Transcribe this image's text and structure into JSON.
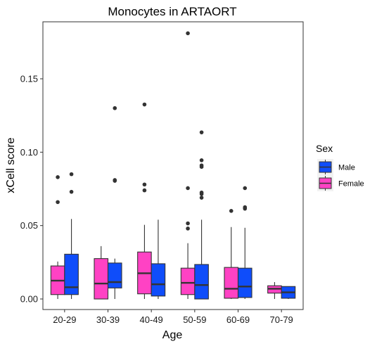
{
  "chart_data": {
    "type": "boxplot",
    "title": "Monocytes in ARTAORT",
    "xlabel": "Age",
    "ylabel": "xCell score",
    "categories": [
      "20-29",
      "30-39",
      "40-49",
      "50-59",
      "60-69",
      "70-79"
    ],
    "ylim": [
      -0.008,
      0.185
    ],
    "yticks": [
      0,
      0.05,
      0.1,
      0.15
    ],
    "ytick_labels": [
      "0.00",
      "0.05",
      "0.10",
      "0.15"
    ],
    "grid": false,
    "legend": {
      "title": "Sex",
      "position": "right",
      "entries": [
        {
          "name": "Male",
          "color": "#0f4dfa"
        },
        {
          "name": "Female",
          "color": "#ff42c4"
        }
      ]
    },
    "series": [
      {
        "name": "Female",
        "color": "#ff42c4",
        "boxes": [
          {
            "whisker_low": 0.0,
            "q1": 0.003,
            "median": 0.0125,
            "q3": 0.0225,
            "whisker_high": 0.0255,
            "outliers": [
              0.066,
              0.083
            ]
          },
          {
            "whisker_low": 0.0,
            "q1": 0.0,
            "median": 0.0105,
            "q3": 0.0275,
            "whisker_high": 0.036,
            "outliers": []
          },
          {
            "whisker_low": 0.0,
            "q1": 0.0035,
            "median": 0.0175,
            "q3": 0.032,
            "whisker_high": 0.0505,
            "outliers": [
              0.074,
              0.078,
              0.1325
            ]
          },
          {
            "whisker_low": 0.0,
            "q1": 0.003,
            "median": 0.011,
            "q3": 0.021,
            "whisker_high": 0.038,
            "outliers": [
              0.048,
              0.0515,
              0.0755,
              0.181
            ]
          },
          {
            "whisker_low": 0.0,
            "q1": 0.0005,
            "median": 0.007,
            "q3": 0.0215,
            "whisker_high": 0.049,
            "outliers": [
              0.06
            ]
          },
          {
            "whisker_low": 0.0,
            "q1": 0.004,
            "median": 0.007,
            "q3": 0.009,
            "whisker_high": 0.0115,
            "outliers": []
          }
        ]
      },
      {
        "name": "Male",
        "color": "#0f4dfa",
        "boxes": [
          {
            "whisker_low": 0.0,
            "q1": 0.003,
            "median": 0.008,
            "q3": 0.0305,
            "whisker_high": 0.0545,
            "outliers": [
              0.073,
              0.085
            ]
          },
          {
            "whisker_low": 0.0,
            "q1": 0.0075,
            "median": 0.0115,
            "q3": 0.0245,
            "whisker_high": 0.0275,
            "outliers": [
              0.0805,
              0.081,
              0.13
            ]
          },
          {
            "whisker_low": 0.0,
            "q1": 0.002,
            "median": 0.01,
            "q3": 0.024,
            "whisker_high": 0.054,
            "outliers": []
          },
          {
            "whisker_low": 0.0,
            "q1": 0.0,
            "median": 0.0095,
            "q3": 0.0235,
            "whisker_high": 0.054,
            "outliers": [
              0.069,
              0.0715,
              0.0725,
              0.09,
              0.091,
              0.0945,
              0.1135
            ]
          },
          {
            "whisker_low": 0.0,
            "q1": 0.001,
            "median": 0.0085,
            "q3": 0.021,
            "whisker_high": 0.0485,
            "outliers": [
              0.0615,
              0.0625,
              0.0755
            ]
          },
          {
            "whisker_low": 0.0,
            "q1": 0.0005,
            "median": 0.0045,
            "q3": 0.0085,
            "whisker_high": 0.0085,
            "outliers": []
          }
        ]
      }
    ]
  }
}
